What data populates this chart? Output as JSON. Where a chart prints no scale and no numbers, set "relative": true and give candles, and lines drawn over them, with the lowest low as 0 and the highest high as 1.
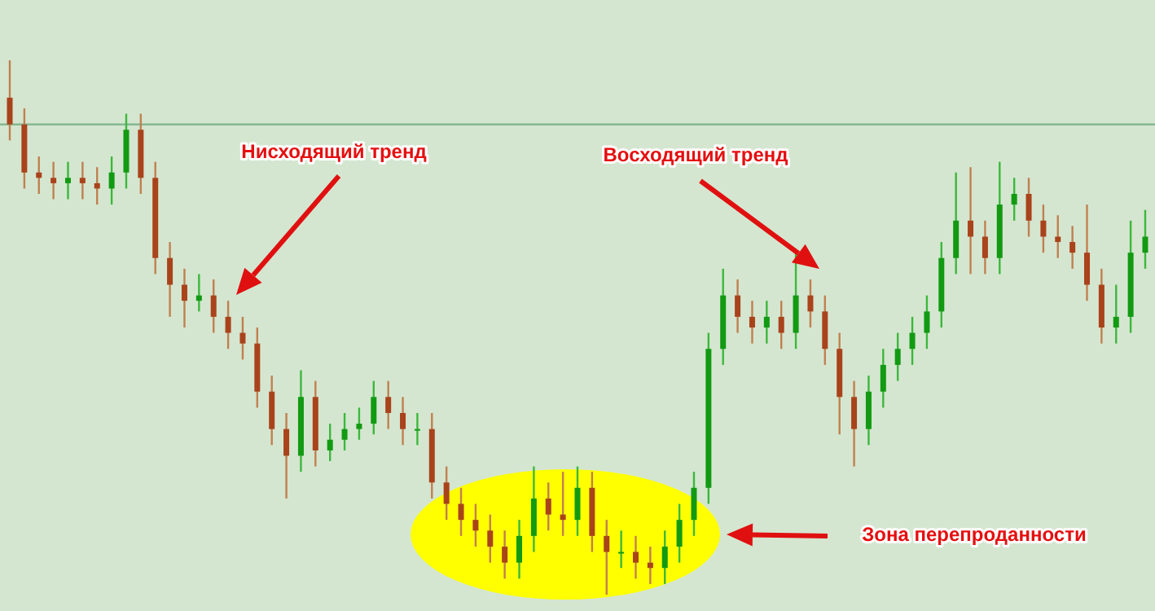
{
  "chart_data": {
    "type": "candlestick",
    "relative": true,
    "categories": [
      null,
      null,
      null,
      null,
      null,
      null,
      null,
      null,
      null,
      null,
      null,
      null,
      null,
      null,
      null,
      null,
      null,
      null,
      null,
      null,
      null,
      null,
      null,
      null,
      null,
      null,
      null,
      null,
      null,
      null,
      null,
      null,
      null,
      null,
      null,
      null,
      null,
      null,
      null,
      null,
      null,
      null,
      null,
      null,
      null,
      null,
      null,
      null,
      null,
      null,
      null,
      null,
      null,
      null,
      null,
      null,
      null,
      null,
      null,
      null,
      null,
      null,
      null,
      null,
      null,
      null,
      null,
      null,
      null,
      null,
      null,
      null,
      null,
      null,
      null,
      null,
      null,
      null,
      null
    ],
    "ohlc": [
      [
        0.93,
        1.0,
        0.85,
        0.88
      ],
      [
        0.88,
        0.91,
        0.76,
        0.79
      ],
      [
        0.79,
        0.82,
        0.75,
        0.78
      ],
      [
        0.78,
        0.81,
        0.74,
        0.77
      ],
      [
        0.77,
        0.81,
        0.74,
        0.78
      ],
      [
        0.78,
        0.81,
        0.74,
        0.77
      ],
      [
        0.77,
        0.8,
        0.73,
        0.76
      ],
      [
        0.76,
        0.82,
        0.73,
        0.79
      ],
      [
        0.79,
        0.9,
        0.76,
        0.87
      ],
      [
        0.87,
        0.9,
        0.75,
        0.78
      ],
      [
        0.78,
        0.81,
        0.6,
        0.63
      ],
      [
        0.63,
        0.66,
        0.52,
        0.58
      ],
      [
        0.58,
        0.61,
        0.5,
        0.55
      ],
      [
        0.55,
        0.6,
        0.53,
        0.56
      ],
      [
        0.56,
        0.59,
        0.49,
        0.52
      ],
      [
        0.52,
        0.55,
        0.46,
        0.49
      ],
      [
        0.49,
        0.52,
        0.44,
        0.47
      ],
      [
        0.47,
        0.5,
        0.35,
        0.38
      ],
      [
        0.38,
        0.41,
        0.28,
        0.31
      ],
      [
        0.31,
        0.34,
        0.18,
        0.26
      ],
      [
        0.26,
        0.42,
        0.23,
        0.37
      ],
      [
        0.37,
        0.4,
        0.24,
        0.27
      ],
      [
        0.27,
        0.32,
        0.25,
        0.29
      ],
      [
        0.29,
        0.34,
        0.27,
        0.31
      ],
      [
        0.31,
        0.35,
        0.29,
        0.32
      ],
      [
        0.32,
        0.4,
        0.3,
        0.37
      ],
      [
        0.37,
        0.4,
        0.31,
        0.34
      ],
      [
        0.34,
        0.37,
        0.28,
        0.31
      ],
      [
        0.31,
        0.34,
        0.28,
        0.31
      ],
      [
        0.31,
        0.34,
        0.18,
        0.21
      ],
      [
        0.21,
        0.24,
        0.14,
        0.17
      ],
      [
        0.17,
        0.2,
        0.11,
        0.14
      ],
      [
        0.14,
        0.17,
        0.09,
        0.12
      ],
      [
        0.12,
        0.15,
        0.06,
        0.09
      ],
      [
        0.09,
        0.12,
        0.03,
        0.06
      ],
      [
        0.06,
        0.14,
        0.03,
        0.11
      ],
      [
        0.11,
        0.24,
        0.08,
        0.18
      ],
      [
        0.18,
        0.21,
        0.12,
        0.15
      ],
      [
        0.15,
        0.23,
        0.11,
        0.14
      ],
      [
        0.14,
        0.24,
        0.11,
        0.2
      ],
      [
        0.2,
        0.23,
        0.08,
        0.11
      ],
      [
        0.11,
        0.14,
        0.0,
        0.08
      ],
      [
        0.08,
        0.12,
        0.05,
        0.08
      ],
      [
        0.08,
        0.11,
        0.03,
        0.06
      ],
      [
        0.06,
        0.09,
        0.02,
        0.05
      ],
      [
        0.05,
        0.12,
        0.02,
        0.09
      ],
      [
        0.09,
        0.17,
        0.06,
        0.14
      ],
      [
        0.14,
        0.23,
        0.11,
        0.2
      ],
      [
        0.2,
        0.49,
        0.17,
        0.46
      ],
      [
        0.46,
        0.61,
        0.43,
        0.56
      ],
      [
        0.56,
        0.59,
        0.49,
        0.52
      ],
      [
        0.52,
        0.55,
        0.47,
        0.5
      ],
      [
        0.5,
        0.55,
        0.47,
        0.52
      ],
      [
        0.52,
        0.55,
        0.46,
        0.49
      ],
      [
        0.49,
        0.64,
        0.46,
        0.56
      ],
      [
        0.56,
        0.59,
        0.5,
        0.53
      ],
      [
        0.53,
        0.56,
        0.43,
        0.46
      ],
      [
        0.46,
        0.49,
        0.3,
        0.37
      ],
      [
        0.37,
        0.4,
        0.24,
        0.31
      ],
      [
        0.31,
        0.41,
        0.28,
        0.38
      ],
      [
        0.38,
        0.46,
        0.35,
        0.43
      ],
      [
        0.43,
        0.49,
        0.4,
        0.46
      ],
      [
        0.46,
        0.52,
        0.43,
        0.49
      ],
      [
        0.49,
        0.56,
        0.46,
        0.53
      ],
      [
        0.53,
        0.66,
        0.5,
        0.63
      ],
      [
        0.63,
        0.79,
        0.6,
        0.7
      ],
      [
        0.7,
        0.8,
        0.6,
        0.67
      ],
      [
        0.67,
        0.7,
        0.6,
        0.63
      ],
      [
        0.63,
        0.81,
        0.6,
        0.73
      ],
      [
        0.73,
        0.78,
        0.7,
        0.75
      ],
      [
        0.75,
        0.78,
        0.67,
        0.7
      ],
      [
        0.7,
        0.73,
        0.64,
        0.67
      ],
      [
        0.67,
        0.71,
        0.63,
        0.66
      ],
      [
        0.66,
        0.69,
        0.61,
        0.64
      ],
      [
        0.64,
        0.73,
        0.55,
        0.58
      ],
      [
        0.58,
        0.61,
        0.47,
        0.5
      ],
      [
        0.5,
        0.58,
        0.47,
        0.52
      ],
      [
        0.52,
        0.7,
        0.49,
        0.64
      ],
      [
        0.64,
        0.72,
        0.61,
        0.67
      ]
    ],
    "ref_lines": [
      {
        "axis": "y",
        "value": 0.88,
        "color": "#86b893"
      }
    ],
    "annotations": [
      "Нисходящий тренд",
      "Восходящий тренд",
      "Зона перепроданности"
    ]
  }
}
